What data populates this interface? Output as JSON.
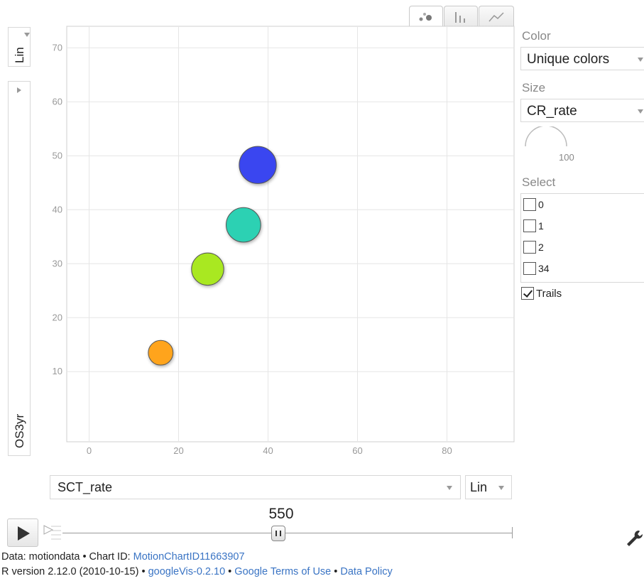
{
  "chart_tabs": [
    {
      "name": "bubbles",
      "icon": "bubble-chart-icon",
      "active": true
    },
    {
      "name": "bars",
      "icon": "bar-chart-icon",
      "active": false
    },
    {
      "name": "lines",
      "icon": "line-chart-icon",
      "active": false
    }
  ],
  "y_axis": {
    "scale": "Lin",
    "variable": "OS3yr"
  },
  "x_axis": {
    "scale": "Lin",
    "variable": "SCT_rate"
  },
  "right_panel": {
    "color_label": "Color",
    "color_value": "Unique colors",
    "size_label": "Size",
    "size_value": "CR_rate",
    "size_max": "100",
    "select_label": "Select",
    "items": [
      {
        "label": "0",
        "checked": false
      },
      {
        "label": "1",
        "checked": false
      },
      {
        "label": "2",
        "checked": false
      },
      {
        "label": "34",
        "checked": false
      }
    ],
    "trails_label": "Trails",
    "trails_checked": true
  },
  "time": {
    "value": "550",
    "position_fraction": 0.48
  },
  "footer": {
    "line1_prefix": "Data: motiondata • Chart ID: ",
    "chart_id": "MotionChartID11663907",
    "line2_prefix": "R version 2.12.0 (2010-10-15) • ",
    "googlevis": "googleVis-0.2.10",
    "sep": " • ",
    "terms": "Google Terms of Use",
    "policy": "Data Policy"
  },
  "chart_data": {
    "type": "scatter",
    "subtype": "bubble",
    "title": "",
    "xlabel": "SCT_rate",
    "ylabel": "OS3yr",
    "xlim": [
      -5,
      95
    ],
    "ylim": [
      -3,
      74
    ],
    "x_ticks": [
      0,
      20,
      40,
      60,
      80
    ],
    "y_ticks": [
      10,
      20,
      30,
      40,
      50,
      60,
      70
    ],
    "grid": true,
    "points": [
      {
        "x": 16,
        "y": 13.5,
        "size": 40,
        "color": "#ffa41c"
      },
      {
        "x": 26.5,
        "y": 29,
        "size": 68,
        "color": "#a9e821"
      },
      {
        "x": 34.5,
        "y": 37.2,
        "size": 78,
        "color": "#2cd1b3"
      },
      {
        "x": 37.7,
        "y": 48.3,
        "size": 90,
        "color": "#3a46f0"
      }
    ]
  }
}
